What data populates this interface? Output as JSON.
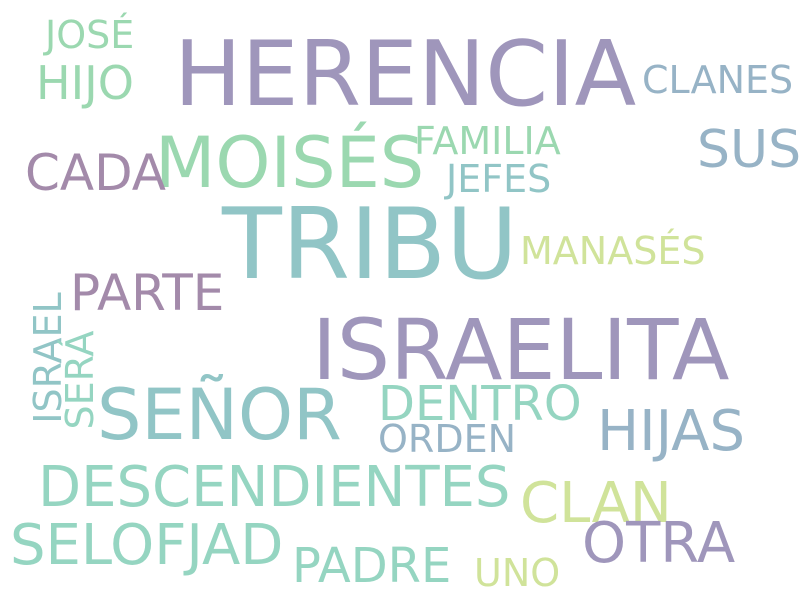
{
  "words": {
    "herencia": "HERENCIA",
    "jose": "JOSÉ",
    "hijo": "HIJO",
    "clanes": "CLANES",
    "moises": "MOISÉS",
    "familia": "FAMILIA",
    "sus": "SUS",
    "cada": "CADA",
    "jefes": "JEFES",
    "tribu": "TRIBU",
    "manases": "MANASÉS",
    "parte": "PARTE",
    "israelita": "ISRAELITA",
    "israel": "ISRAEL",
    "sera": "SERÁ",
    "senor": "SEÑOR",
    "dentro": "DENTRO",
    "hijas": "HIJAS",
    "orden": "ORDEN",
    "descendientes": "DESCENDIENTES",
    "clan": "CLAN",
    "selofjad": "SELOFJAD",
    "otra": "OTRA",
    "padre": "PADRE",
    "uno": "UNO"
  },
  "palette": {
    "background": "#ffffff",
    "lavender": "#9f96bb",
    "mint": "#9bd8b0",
    "teal": "#91c5c6",
    "steel": "#97b3c6",
    "plum": "#a38aaa",
    "lime": "#d0e39a",
    "sea": "#95d5c1"
  }
}
